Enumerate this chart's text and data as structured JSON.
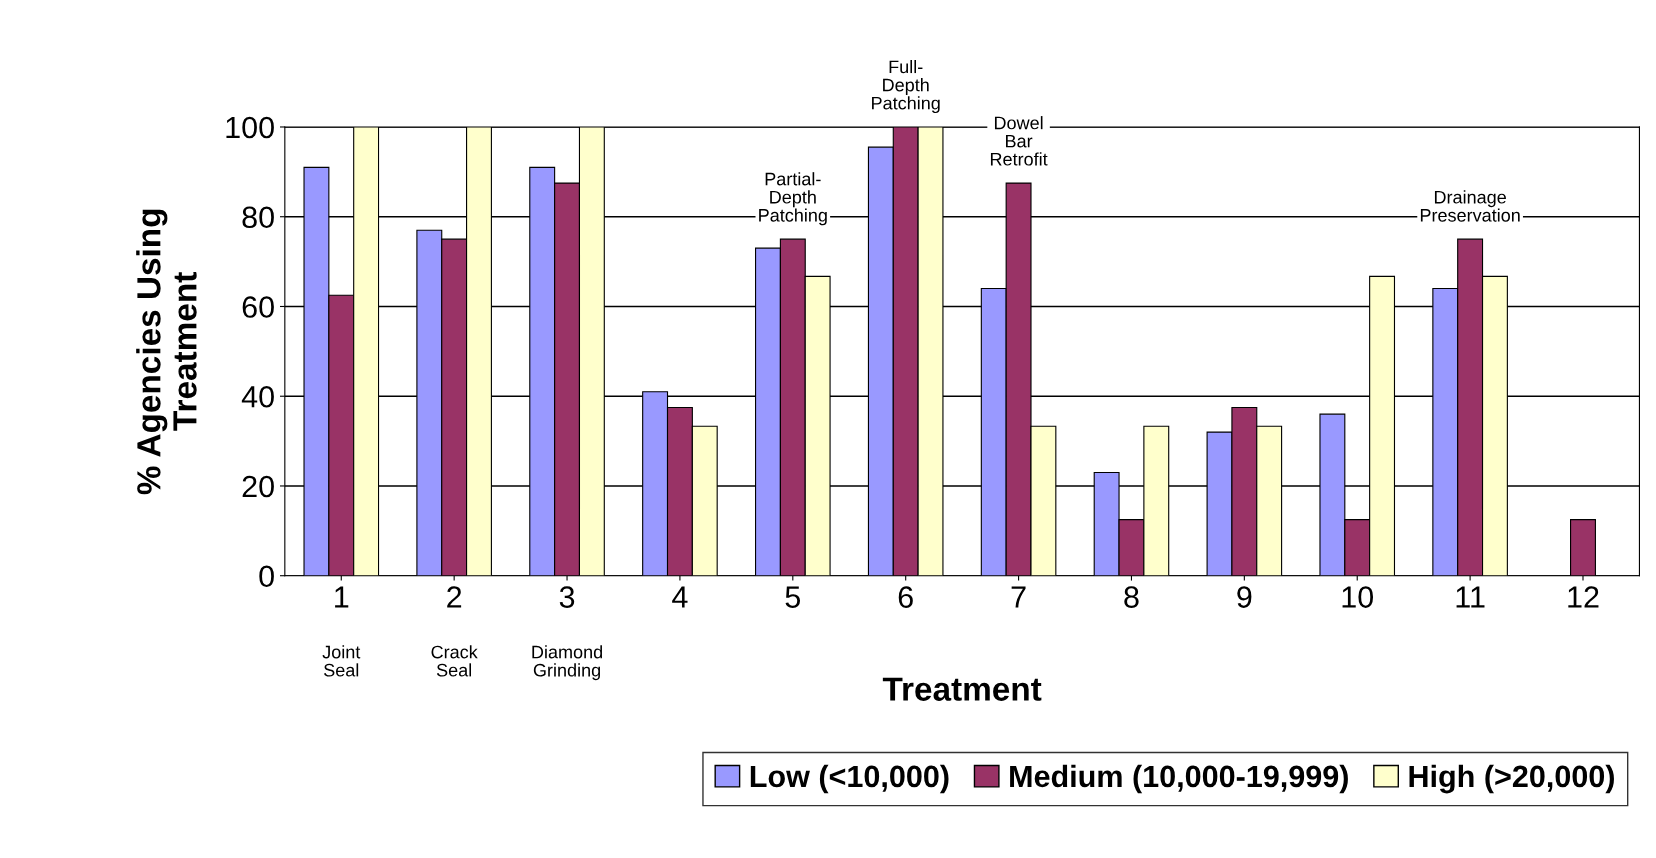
{
  "chart_data": {
    "type": "bar",
    "xlabel": "Treatment",
    "ylabel": "% Agencies Using\nTreatment",
    "categories": [
      "1\nJoint\nSeal",
      "2\nCrack\nSeal",
      "3\nDiamond\nGrinding",
      "4",
      "5",
      "6",
      "7",
      "8",
      "9",
      "10",
      "11",
      "12"
    ],
    "series": [
      {
        "name": "Low (<10,000)",
        "color": "#9999ff",
        "values": [
          91,
          77,
          91,
          41,
          73,
          95.5,
          64,
          23,
          32,
          36,
          64,
          null
        ]
      },
      {
        "name": "Medium (10,000-19,999)",
        "color": "#993366",
        "values": [
          62.5,
          75,
          87.5,
          37.5,
          75,
          100,
          87.5,
          12.5,
          37.5,
          12.5,
          75,
          12.5
        ]
      },
      {
        "name": "High (>20,000)",
        "color": "#ffffcc",
        "values": [
          100,
          100,
          100,
          33.3,
          66.7,
          100,
          33.3,
          33.3,
          33.3,
          66.7,
          66.7,
          null
        ]
      }
    ],
    "ylim": [
      0,
      100
    ],
    "yticks": [
      0,
      20,
      40,
      60,
      80,
      100
    ],
    "grid": "y",
    "legend": "bottom",
    "annotations": [
      {
        "text": "Partial-\nDepth\nPatching",
        "x": "5",
        "y": 75
      },
      {
        "text": "Full-\nDepth\nPatching",
        "x": "6",
        "y": 100
      },
      {
        "text": "Dowel\nBar\nRetrofit",
        "x": "7",
        "y": 87.5
      },
      {
        "text": "Drainage\nPreservation",
        "x": "11",
        "y": 75
      }
    ]
  }
}
